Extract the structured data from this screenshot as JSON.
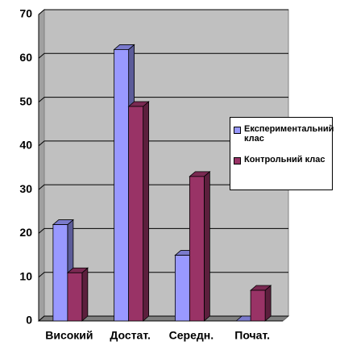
{
  "chart_data": {
    "type": "bar",
    "categories": [
      "Високий",
      "Достат.",
      "Середн.",
      "Почат."
    ],
    "series": [
      {
        "name": "Експериментальний клас",
        "color": "#9999ff",
        "values": [
          22,
          62,
          15,
          0
        ]
      },
      {
        "name": "Контрольний клас",
        "color": "#993366",
        "values": [
          11,
          49,
          33,
          7
        ]
      }
    ],
    "ylim": [
      0,
      70
    ],
    "yticks": [
      0,
      10,
      20,
      30,
      40,
      50,
      60,
      70
    ],
    "grid": true,
    "legend": "right"
  }
}
